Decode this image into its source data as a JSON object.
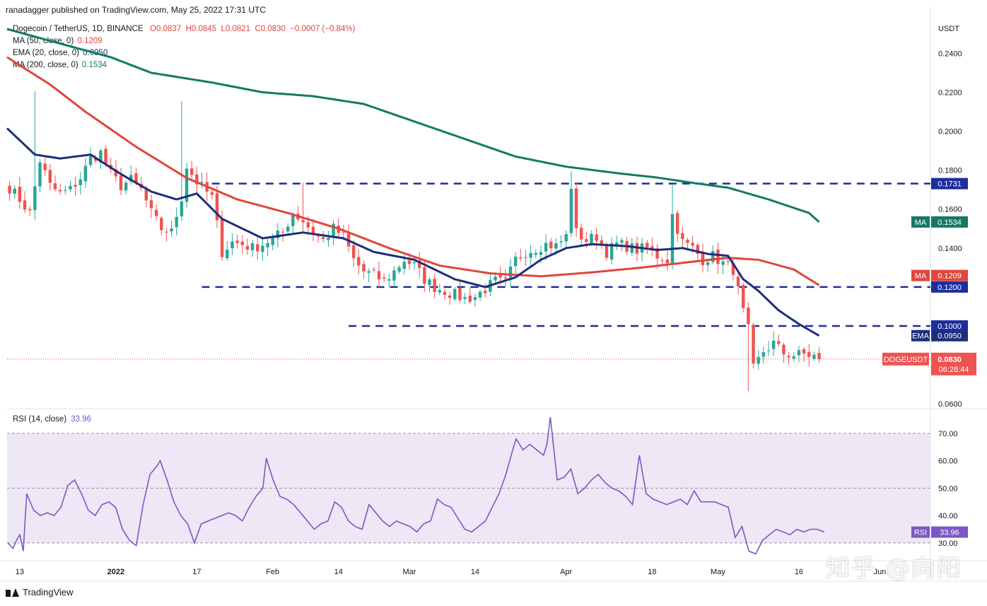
{
  "header": {
    "published": "ranadagger published on TradingView.com, May 25, 2022 17:31 UTC"
  },
  "title": {
    "symbol": "Dogecoin / TetherUS, 1D, BINANCE",
    "o": "O0.0837",
    "h": "H0.0845",
    "l": "L0.0821",
    "c": "C0.0830",
    "chg": "−0.0007 (−0.84%)"
  },
  "indicators": [
    {
      "label": "MA (50, close, 0)",
      "value": "0.1209",
      "color": "#e0463c"
    },
    {
      "label": "EMA (20, close, 0)",
      "value": "0.0950",
      "color": "#1c2e7a"
    },
    {
      "label": "MA (200, close, 0)",
      "value": "0.1534",
      "color": "#137a63"
    }
  ],
  "rsi_legend": {
    "label": "RSI (14, close)",
    "value": "33.96",
    "color": "#7e57c2"
  },
  "footer": {
    "brand": "TradingView"
  },
  "watermark": "知乎 @向阳",
  "colors": {
    "up": "#26a69a",
    "down": "#ef5350",
    "level": "#1c2e9e",
    "rsi": "#7e57c2",
    "rsi_band": "#ede7f6",
    "price_line": "#ef5350"
  },
  "chart_data": {
    "type": "candlestick",
    "price_axis": {
      "unit": "USDT",
      "range": [
        0.0575,
        0.2565
      ],
      "ticks": [
        0.06,
        0.14,
        0.16,
        0.18,
        0.2,
        0.22,
        0.24
      ],
      "tick_labels": [
        "0.0600",
        "0.1400",
        "0.1600",
        "0.1800",
        "0.2000",
        "0.2200",
        "0.2400"
      ]
    },
    "x_axis": {
      "bar_range": [
        -0.5,
        182
      ],
      "ticks": [
        {
          "bar": 2,
          "label": "13"
        },
        {
          "bar": 21,
          "label": "2022"
        },
        {
          "bar": 37,
          "label": "17"
        },
        {
          "bar": 52,
          "label": "Feb"
        },
        {
          "bar": 65,
          "label": "14"
        },
        {
          "bar": 79,
          "label": "Mar"
        },
        {
          "bar": 92,
          "label": "14"
        },
        {
          "bar": 110,
          "label": "Apr"
        },
        {
          "bar": 127,
          "label": "18"
        },
        {
          "bar": 140,
          "label": "May"
        },
        {
          "bar": 156,
          "label": "16"
        },
        {
          "bar": 172,
          "label": "Jun"
        }
      ]
    },
    "levels": [
      {
        "value": 0.1731,
        "label": "0.1731",
        "from_bar": 40
      },
      {
        "value": 0.12,
        "label": "0.1200",
        "from_bar": 38
      },
      {
        "value": 0.1,
        "label": "0.1000",
        "from_bar": 67
      }
    ],
    "axis_labels": [
      {
        "text": "MA",
        "value": "0.1534",
        "price": 0.1534,
        "color": "#137a63"
      },
      {
        "text": "MA",
        "value": "0.1209",
        "price": 0.1259,
        "color": "#e0463c"
      },
      {
        "text": "EMA",
        "value": "0.0950",
        "price": 0.095,
        "color": "#1c2e7a"
      }
    ],
    "current": {
      "symbol": "DOGEUSDT",
      "price": "0.0830",
      "countdown": "06:28:44"
    },
    "close_anchors": [
      [
        0,
        0.171
      ],
      [
        2,
        0.165
      ],
      [
        4,
        0.158
      ],
      [
        6,
        0.185
      ],
      [
        8,
        0.172
      ],
      [
        10,
        0.168
      ],
      [
        12,
        0.17
      ],
      [
        14,
        0.176
      ],
      [
        16,
        0.186
      ],
      [
        18,
        0.189
      ],
      [
        20,
        0.178
      ],
      [
        22,
        0.172
      ],
      [
        24,
        0.175
      ],
      [
        26,
        0.17
      ],
      [
        28,
        0.158
      ],
      [
        30,
        0.15
      ],
      [
        32,
        0.148
      ],
      [
        34,
        0.166
      ],
      [
        35,
        0.182
      ],
      [
        37,
        0.174
      ],
      [
        40,
        0.166
      ],
      [
        42,
        0.138
      ],
      [
        44,
        0.143
      ],
      [
        46,
        0.142
      ],
      [
        48,
        0.14
      ],
      [
        50,
        0.142
      ],
      [
        52,
        0.145
      ],
      [
        54,
        0.148
      ],
      [
        56,
        0.158
      ],
      [
        58,
        0.154
      ],
      [
        60,
        0.148
      ],
      [
        62,
        0.144
      ],
      [
        64,
        0.15
      ],
      [
        66,
        0.146
      ],
      [
        68,
        0.134
      ],
      [
        70,
        0.128
      ],
      [
        72,
        0.126
      ],
      [
        74,
        0.123
      ],
      [
        76,
        0.128
      ],
      [
        78,
        0.134
      ],
      [
        80,
        0.131
      ],
      [
        82,
        0.124
      ],
      [
        84,
        0.12
      ],
      [
        86,
        0.118
      ],
      [
        88,
        0.116
      ],
      [
        90,
        0.114
      ],
      [
        92,
        0.115
      ],
      [
        94,
        0.119
      ],
      [
        96,
        0.123
      ],
      [
        98,
        0.122
      ],
      [
        100,
        0.134
      ],
      [
        102,
        0.138
      ],
      [
        104,
        0.14
      ],
      [
        106,
        0.142
      ],
      [
        108,
        0.141
      ],
      [
        110,
        0.146
      ],
      [
        111,
        0.172
      ],
      [
        112,
        0.148
      ],
      [
        114,
        0.144
      ],
      [
        116,
        0.146
      ],
      [
        118,
        0.138
      ],
      [
        120,
        0.142
      ],
      [
        122,
        0.141
      ],
      [
        124,
        0.139
      ],
      [
        126,
        0.14
      ],
      [
        128,
        0.136
      ],
      [
        130,
        0.134
      ],
      [
        131,
        0.157
      ],
      [
        133,
        0.143
      ],
      [
        135,
        0.14
      ],
      [
        137,
        0.134
      ],
      [
        139,
        0.136
      ],
      [
        141,
        0.132
      ],
      [
        143,
        0.129
      ],
      [
        145,
        0.107
      ],
      [
        146,
        0.098
      ],
      [
        147,
        0.078
      ],
      [
        149,
        0.087
      ],
      [
        151,
        0.091
      ],
      [
        153,
        0.086
      ],
      [
        155,
        0.085
      ],
      [
        157,
        0.0855
      ],
      [
        159,
        0.0845
      ],
      [
        160,
        0.083
      ]
    ],
    "wick_spikes": [
      {
        "bar": 5,
        "high": 0.2205
      },
      {
        "bar": 34,
        "high": 0.2155
      },
      {
        "bar": 58,
        "high": 0.1735
      },
      {
        "bar": 111,
        "high": 0.1795
      },
      {
        "bar": 131,
        "high": 0.1725
      },
      {
        "bar": 146,
        "low": 0.0665
      }
    ],
    "ma200_anchors": [
      [
        -0.5,
        0.2525
      ],
      [
        10,
        0.245
      ],
      [
        20,
        0.238
      ],
      [
        28,
        0.23
      ],
      [
        40,
        0.225
      ],
      [
        50,
        0.22
      ],
      [
        60,
        0.218
      ],
      [
        70,
        0.214
      ],
      [
        80,
        0.205
      ],
      [
        90,
        0.196
      ],
      [
        100,
        0.187
      ],
      [
        110,
        0.1818
      ],
      [
        120,
        0.1785
      ],
      [
        128,
        0.1762
      ],
      [
        135,
        0.1735
      ],
      [
        142,
        0.171
      ],
      [
        150,
        0.165
      ],
      [
        158,
        0.158
      ],
      [
        160,
        0.1534
      ]
    ],
    "ma50_anchors": [
      [
        -0.5,
        0.238
      ],
      [
        8,
        0.224
      ],
      [
        15,
        0.21
      ],
      [
        25,
        0.192
      ],
      [
        35,
        0.176
      ],
      [
        45,
        0.165
      ],
      [
        55,
        0.158
      ],
      [
        65,
        0.15
      ],
      [
        75,
        0.14
      ],
      [
        85,
        0.131
      ],
      [
        95,
        0.127
      ],
      [
        105,
        0.1255
      ],
      [
        115,
        0.1275
      ],
      [
        125,
        0.13
      ],
      [
        135,
        0.133
      ],
      [
        142,
        0.135
      ],
      [
        148,
        0.134
      ],
      [
        155,
        0.129
      ],
      [
        160,
        0.1209
      ]
    ],
    "ema20_anchors": [
      [
        -0.5,
        0.2015
      ],
      [
        5,
        0.188
      ],
      [
        10,
        0.186
      ],
      [
        16,
        0.188
      ],
      [
        22,
        0.178
      ],
      [
        28,
        0.169
      ],
      [
        33,
        0.165
      ],
      [
        37,
        0.168
      ],
      [
        42,
        0.155
      ],
      [
        50,
        0.145
      ],
      [
        58,
        0.148
      ],
      [
        66,
        0.145
      ],
      [
        72,
        0.138
      ],
      [
        80,
        0.134
      ],
      [
        88,
        0.124
      ],
      [
        94,
        0.12
      ],
      [
        100,
        0.125
      ],
      [
        105,
        0.134
      ],
      [
        110,
        0.14
      ],
      [
        115,
        0.142
      ],
      [
        122,
        0.141
      ],
      [
        128,
        0.139
      ],
      [
        133,
        0.14
      ],
      [
        138,
        0.137
      ],
      [
        142,
        0.136
      ],
      [
        145,
        0.124
      ],
      [
        148,
        0.118
      ],
      [
        152,
        0.108
      ],
      [
        156,
        0.101
      ],
      [
        160,
        0.095
      ]
    ],
    "rsi": {
      "label": "RSI (14, close)",
      "range": [
        23.5,
        78.5
      ],
      "bands": [
        30,
        50,
        70
      ],
      "tick_labels": [
        "30.00",
        "40.00",
        "50.00",
        "60.00",
        "70.00"
      ],
      "current": "33.96",
      "anchors": [
        [
          -0.5,
          30
        ],
        [
          1,
          28
        ],
        [
          2,
          31
        ],
        [
          3,
          33
        ],
        [
          4,
          27
        ],
        [
          5,
          48
        ],
        [
          7,
          42
        ],
        [
          9,
          40
        ],
        [
          11,
          41
        ],
        [
          13,
          40
        ],
        [
          15,
          43
        ],
        [
          17,
          51
        ],
        [
          19,
          53
        ],
        [
          21,
          48
        ],
        [
          23,
          42
        ],
        [
          25,
          40
        ],
        [
          27,
          44
        ],
        [
          29,
          45
        ],
        [
          31,
          43
        ],
        [
          33,
          35
        ],
        [
          35,
          31
        ],
        [
          37,
          29
        ],
        [
          39,
          44
        ],
        [
          41,
          55
        ],
        [
          43,
          58
        ],
        [
          44,
          60
        ],
        [
          46,
          53
        ],
        [
          48,
          45
        ],
        [
          50,
          40
        ],
        [
          52,
          37
        ],
        [
          54,
          30
        ],
        [
          56,
          37
        ],
        [
          58,
          38
        ],
        [
          60,
          39
        ],
        [
          62,
          40
        ],
        [
          64,
          41
        ],
        [
          66,
          40
        ],
        [
          68,
          38
        ],
        [
          70,
          43
        ],
        [
          72,
          47
        ],
        [
          74,
          50
        ],
        [
          75,
          61
        ],
        [
          77,
          53
        ],
        [
          79,
          47
        ],
        [
          81,
          46
        ],
        [
          83,
          44
        ],
        [
          85,
          41
        ],
        [
          87,
          38
        ],
        [
          89,
          35
        ],
        [
          91,
          37
        ],
        [
          93,
          38
        ],
        [
          95,
          45
        ],
        [
          97,
          43
        ],
        [
          99,
          38
        ],
        [
          101,
          36
        ],
        [
          103,
          35
        ],
        [
          105,
          44
        ],
        [
          107,
          41
        ],
        [
          109,
          38
        ],
        [
          111,
          36
        ],
        [
          113,
          38
        ],
        [
          115,
          37
        ],
        [
          117,
          36
        ],
        [
          119,
          34
        ],
        [
          121,
          37
        ],
        [
          123,
          38
        ],
        [
          125,
          46
        ],
        [
          127,
          44
        ],
        [
          129,
          43
        ],
        [
          131,
          39
        ],
        [
          133,
          35
        ],
        [
          135,
          34
        ],
        [
          137,
          36
        ],
        [
          139,
          38
        ],
        [
          141,
          43
        ],
        [
          143,
          48
        ],
        [
          145,
          55
        ],
        [
          147,
          64
        ],
        [
          148,
          68
        ],
        [
          150,
          64
        ],
        [
          152,
          66
        ],
        [
          154,
          64
        ],
        [
          156,
          62
        ],
        [
          157,
          66
        ],
        [
          158,
          76
        ],
        [
          160,
          53
        ],
        [
          162,
          54
        ],
        [
          164,
          57
        ],
        [
          166,
          48
        ],
        [
          168,
          50
        ],
        [
          170,
          53
        ],
        [
          172,
          55
        ],
        [
          174,
          52
        ],
        [
          176,
          50
        ],
        [
          178,
          49
        ],
        [
          180,
          47
        ],
        [
          182,
          44
        ],
        [
          184,
          62
        ],
        [
          186,
          48
        ],
        [
          188,
          46
        ],
        [
          190,
          45
        ],
        [
          192,
          44
        ],
        [
          194,
          45
        ],
        [
          196,
          46
        ],
        [
          198,
          44
        ],
        [
          200,
          49
        ],
        [
          202,
          45
        ],
        [
          204,
          45
        ],
        [
          206,
          45
        ],
        [
          208,
          44
        ],
        [
          210,
          43
        ],
        [
          212,
          32
        ],
        [
          214,
          36
        ],
        [
          216,
          27
        ],
        [
          218,
          26
        ],
        [
          220,
          31
        ],
        [
          222,
          33
        ],
        [
          224,
          35
        ],
        [
          226,
          34
        ],
        [
          228,
          33
        ],
        [
          230,
          35
        ],
        [
          232,
          34
        ],
        [
          234,
          35
        ],
        [
          236,
          35
        ],
        [
          238,
          34
        ]
      ]
    }
  }
}
